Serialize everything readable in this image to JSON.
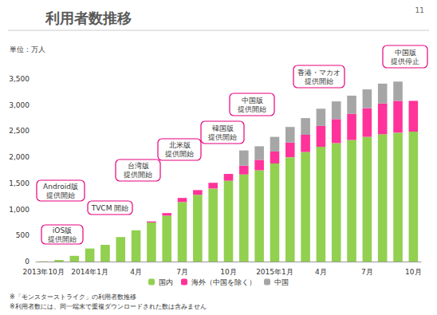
{
  "chart_data": {
    "type": "bar",
    "title": "利用者数推移",
    "page_number": "11",
    "unit_label": "単位：万人",
    "categories": [
      "2013年10月",
      null,
      null,
      "2014年1月",
      null,
      null,
      "4月",
      null,
      null,
      "7月",
      null,
      null,
      "10月",
      null,
      null,
      "2015年1月",
      null,
      null,
      "4月",
      null,
      null,
      "7月",
      null,
      null,
      "10月"
    ],
    "series": [
      {
        "name": "国内",
        "color": "#92d050",
        "values": [
          5,
          30,
          110,
          250,
          320,
          470,
          600,
          750,
          880,
          1140,
          1280,
          1400,
          1550,
          1670,
          1750,
          1880,
          2000,
          2100,
          2200,
          2270,
          2330,
          2390,
          2440,
          2470,
          2490
        ]
      },
      {
        "name": "海外（中国を除く）",
        "color": "#ff3399",
        "values": [
          0,
          0,
          0,
          0,
          0,
          0,
          0,
          20,
          50,
          80,
          90,
          110,
          130,
          170,
          200,
          230,
          280,
          330,
          400,
          460,
          500,
          550,
          590,
          610,
          590
        ]
      },
      {
        "name": "中国",
        "color": "#a6a6a6",
        "values": [
          0,
          0,
          0,
          0,
          0,
          0,
          0,
          0,
          0,
          0,
          0,
          0,
          0,
          290,
          260,
          280,
          300,
          320,
          330,
          340,
          350,
          360,
          380,
          370,
          0
        ]
      }
    ],
    "stacked": true,
    "ylim": [
      0,
      3500
    ],
    "yticks": [
      0,
      500,
      {
        "value": 1000,
        "label": "1,000"
      },
      {
        "value": 1500,
        "label": "1,500"
      },
      {
        "value": 2000,
        "label": "2,000"
      },
      {
        "value": 2500,
        "label": "2,500"
      },
      {
        "value": 3000,
        "label": "3,000"
      },
      {
        "value": 3500,
        "label": "3,500"
      }
    ],
    "grid": false,
    "legend": "bottom",
    "annotations": [
      "iOS版\n提供開始",
      "Android版\n提供開始",
      "TVCM 開始",
      "台湾版\n提供開始",
      "北米版\n提供開始",
      "韓国版\n提供開始",
      "中国版\n提供開始",
      "香港・マカオ\n提供開始",
      "中国版\n提供停止"
    ],
    "footnotes": [
      "※「モンスターストライク」の利用者数推移",
      "※利用者数には、同一端末で重複ダウンロードされた数は含みません"
    ]
  }
}
